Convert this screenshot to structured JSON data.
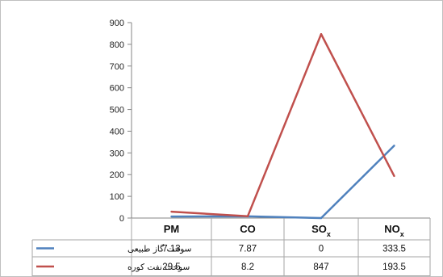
{
  "chart_data": {
    "type": "line",
    "categories": [
      {
        "main": "PM",
        "sub": ""
      },
      {
        "main": "CO",
        "sub": ""
      },
      {
        "main": "SO",
        "sub": "x"
      },
      {
        "main": "NO",
        "sub": "x"
      }
    ],
    "series": [
      {
        "name": "سوخت گاز طبیعی",
        "color": "#4f81bd",
        "values": [
          7.13,
          7.87,
          0,
          333.5
        ],
        "labels": [
          "7.13",
          "7.87",
          "0",
          "333.5"
        ]
      },
      {
        "name": "سوخت نفت کوره",
        "color": "#c0504d",
        "values": [
          29.5,
          8.2,
          847,
          193.5
        ],
        "labels": [
          "29.5",
          "8.2",
          "847",
          "193.5"
        ]
      }
    ],
    "y_ticks": [
      "0",
      "100",
      "200",
      "300",
      "400",
      "500",
      "600",
      "700",
      "800",
      "900"
    ],
    "ylim": [
      0,
      900
    ],
    "grid": false,
    "legend": "data-table"
  }
}
